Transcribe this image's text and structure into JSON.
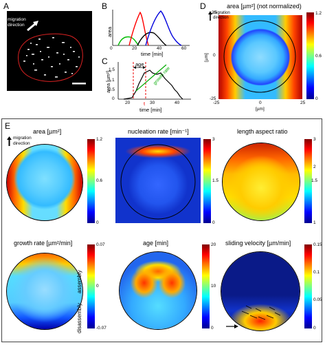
{
  "panels": {
    "A": {
      "label": "A",
      "migration_text_1": "migration",
      "migration_text_2": "direction"
    },
    "B": {
      "label": "B",
      "ylabel": "area",
      "xlabel": "time [min]",
      "x_ticks": [
        "0",
        "20",
        "40",
        "60"
      ],
      "colors": [
        "#00bb00",
        "#ff0000",
        "#000000",
        "#0000dd"
      ]
    },
    "C": {
      "label": "C",
      "ylabel": "area [µm²]",
      "xlabel": "time [min]",
      "x_ticks": [
        "20",
        "30",
        "40"
      ],
      "y_ticks": [
        "0",
        "0.5",
        "1",
        "1.5"
      ],
      "age_label": "age",
      "growth_label": "growth rate",
      "t_label": "t"
    },
    "D": {
      "label": "D",
      "title": "area [µm²] (not normalized)",
      "migration_text_1": "migration",
      "migration_text_2": "direction",
      "y_unit": "[µm]",
      "x_unit": "[µm]",
      "x_ticks": [
        "-25",
        "0",
        "25"
      ],
      "y_ticks": [
        "25",
        "0",
        "-25"
      ],
      "cbar_ticks": [
        "1.2",
        "0.6",
        "0"
      ]
    },
    "E": {
      "label": "E",
      "migration_text_1": "migration",
      "migration_text_2": "direction",
      "maps": [
        {
          "title": "area [µm²]",
          "cbar_ticks": [
            "1.2",
            "0.6",
            "0"
          ]
        },
        {
          "title": "nucleation rate [min⁻¹]",
          "cbar_ticks": [
            "3",
            "1.5",
            "0"
          ]
        },
        {
          "title": "length aspect ratio",
          "cbar_ticks": [
            "3",
            "2",
            "1.5",
            "1"
          ]
        },
        {
          "title": "growth rate [µm²/min]",
          "cbar_ticks": [
            "0.07",
            "0",
            "-0.07"
          ],
          "side_top": "assembly",
          "side_bottom": "disassembly"
        },
        {
          "title": "age [min]",
          "cbar_ticks": [
            "20",
            "10",
            "0"
          ]
        },
        {
          "title": "sliding velocity [µm/min]",
          "cbar_ticks": [
            "0.15",
            "0.1",
            "0.05",
            "0"
          ]
        }
      ]
    }
  }
}
